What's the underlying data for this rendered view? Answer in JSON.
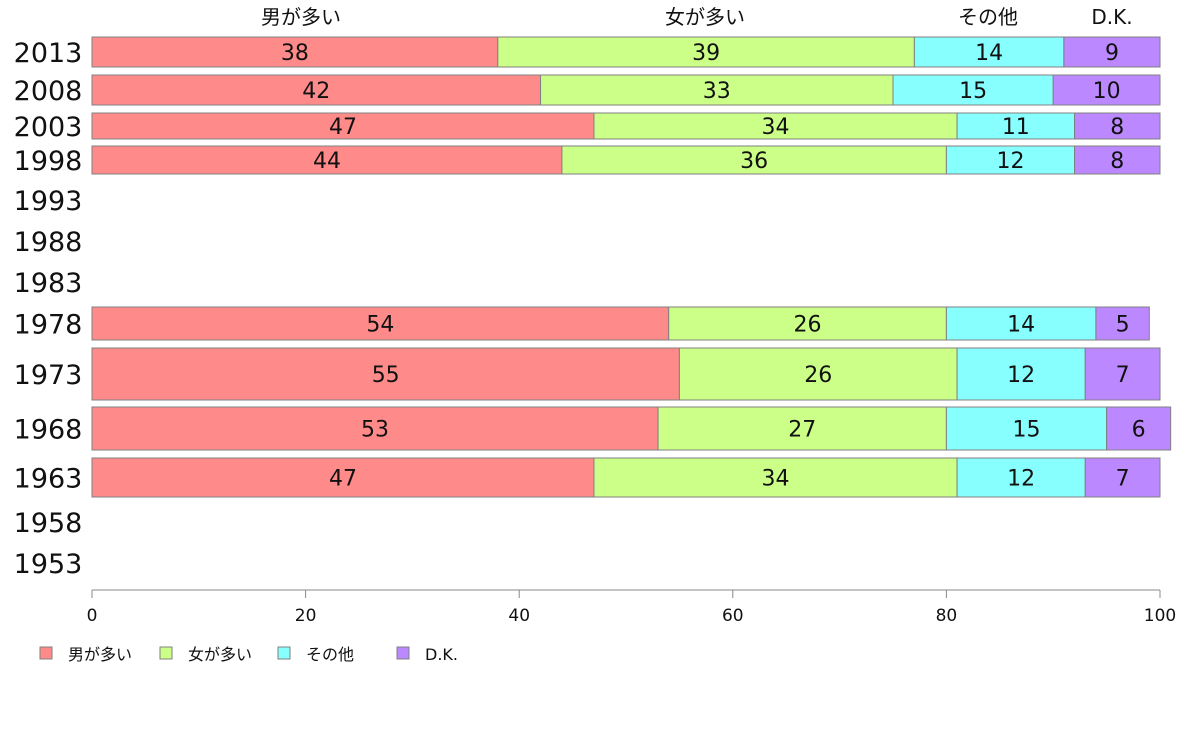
{
  "chart_data": {
    "type": "bar",
    "orientation": "horizontal",
    "stacked": true,
    "categories": [
      "2013",
      "2008",
      "2003",
      "1998",
      "1993",
      "1988",
      "1983",
      "1978",
      "1973",
      "1968",
      "1963",
      "1958",
      "1953"
    ],
    "series": [
      {
        "name": "男が多い",
        "color": "#ff8a8a",
        "values": [
          38,
          42,
          47,
          44,
          null,
          null,
          null,
          54,
          55,
          53,
          47,
          null,
          null
        ]
      },
      {
        "name": "女が多い",
        "color": "#ccff88",
        "values": [
          39,
          33,
          34,
          36,
          null,
          null,
          null,
          26,
          26,
          27,
          34,
          null,
          null
        ]
      },
      {
        "name": "その他",
        "color": "#88ffff",
        "values": [
          14,
          15,
          11,
          12,
          null,
          null,
          null,
          14,
          12,
          15,
          12,
          null,
          null
        ]
      },
      {
        "name": "D.K.",
        "color": "#bb88ff",
        "values": [
          9,
          10,
          8,
          8,
          null,
          null,
          null,
          5,
          7,
          6,
          7,
          null,
          null
        ]
      }
    ],
    "xlim": [
      0,
      100
    ],
    "xticks": [
      "0",
      "20",
      "40",
      "60",
      "80",
      "100"
    ],
    "header_labels": [
      "男が多い",
      "女が多い",
      "その他",
      "D.K."
    ],
    "legend": {
      "position": "bottom-left"
    },
    "grid": false
  }
}
